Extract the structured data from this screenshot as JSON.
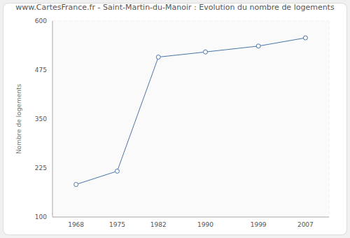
{
  "chart_data": {
    "type": "line",
    "title": "www.CartesFrance.fr - Saint-Martin-du-Manoir : Evolution du nombre de logements",
    "y_label": "Nombre de logements",
    "x": [
      1968,
      1975,
      1982,
      1990,
      1999,
      2007
    ],
    "values": [
      183,
      217,
      508,
      521,
      536,
      557
    ],
    "color": "#4a74a6",
    "marker": "circle",
    "xlim": [
      1964,
      2011
    ],
    "xticks": [
      1968,
      1975,
      1982,
      1990,
      1999,
      2007
    ],
    "ylim": [
      100,
      600
    ],
    "yticks": [
      100,
      225,
      350,
      475,
      600
    ],
    "grid": true
  }
}
